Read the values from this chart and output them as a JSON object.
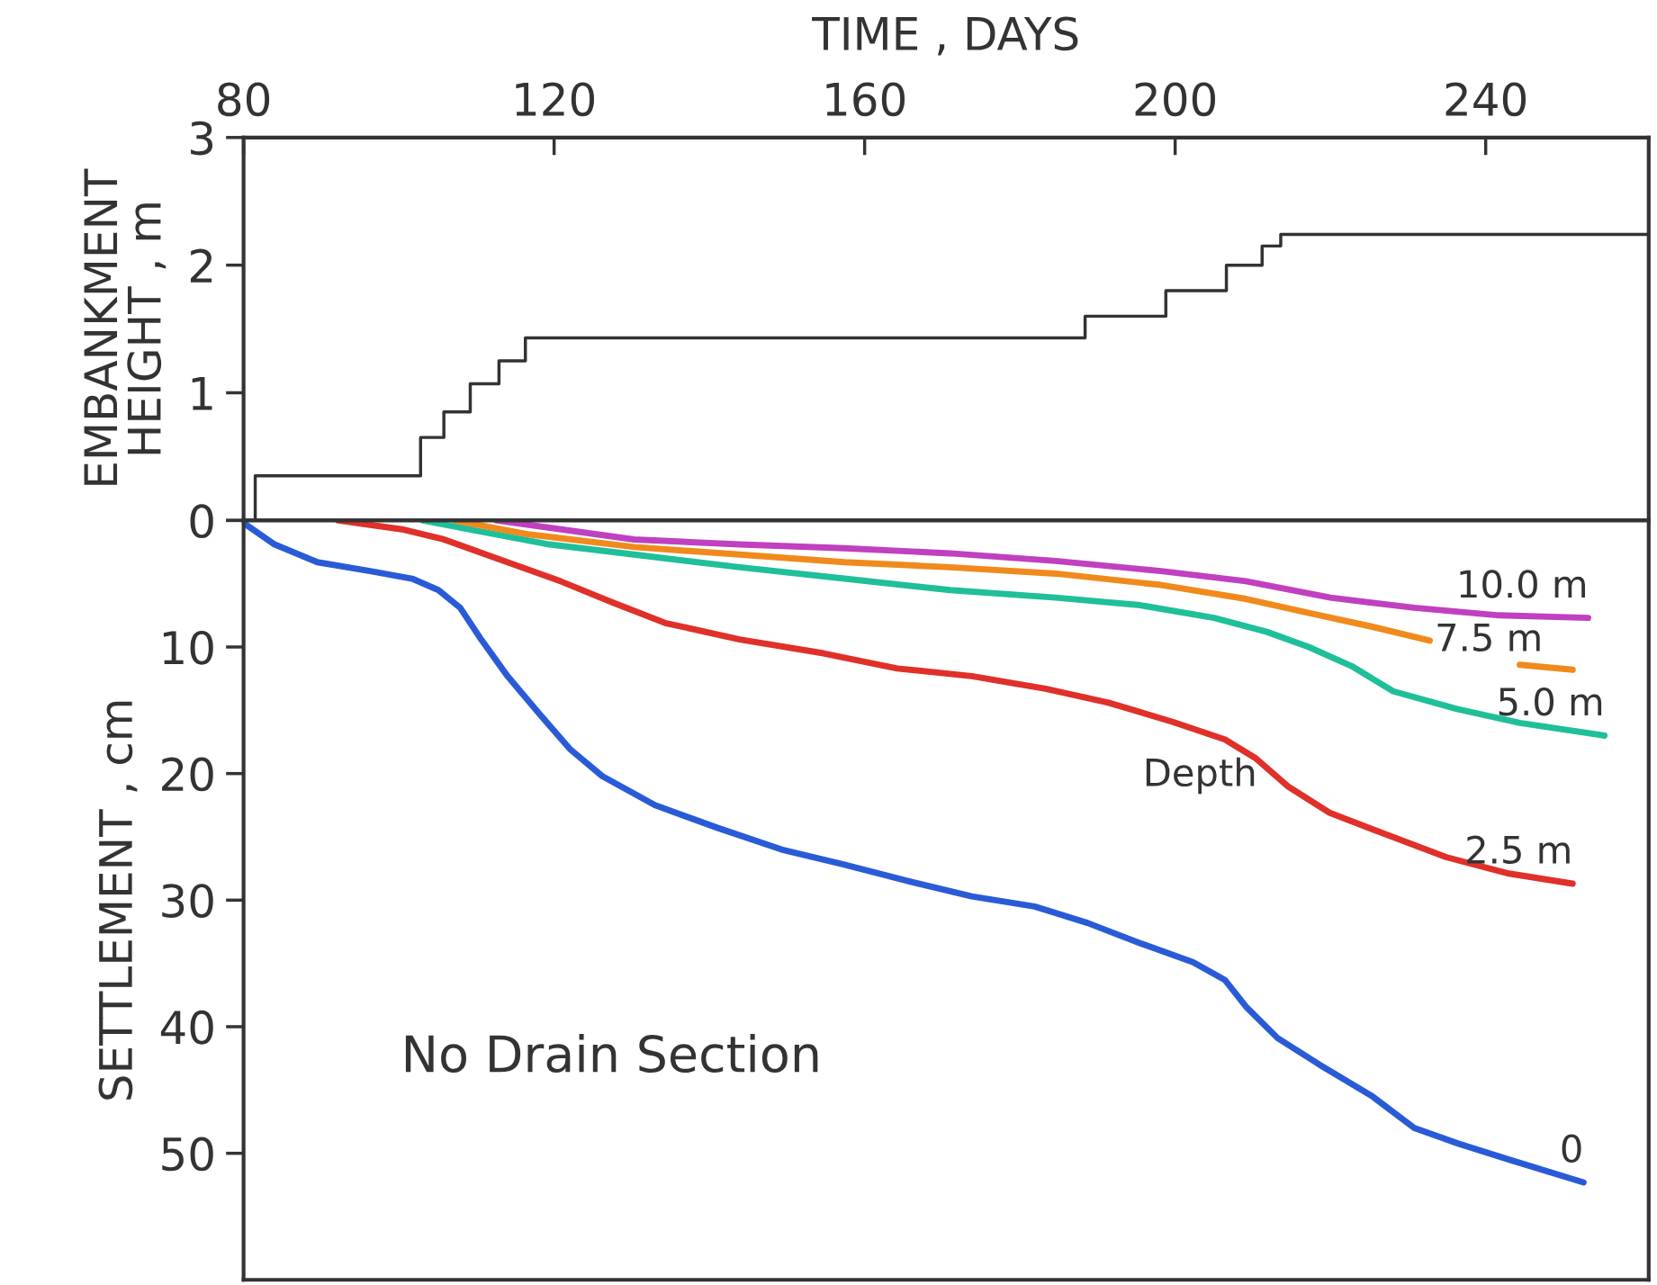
{
  "chart_data": [
    {
      "type": "step",
      "title": "TIME , DAYS",
      "ylabel": "EMBANKMENT\nHEIGHT , m",
      "xlim": [
        80,
        261
      ],
      "xticks": [
        80,
        120,
        160,
        200,
        240
      ],
      "ylim": [
        0,
        3
      ],
      "yticks": [
        0,
        1,
        2,
        3
      ],
      "grid": false,
      "legend": false,
      "x": [
        81.5,
        81.5,
        102.8,
        105.8,
        109.2,
        112.9,
        116.3,
        188.4,
        198.8,
        206.6,
        211.2,
        213.6,
        261
      ],
      "series": [
        {
          "color": "#333333",
          "values": [
            0,
            0.35,
            0.65,
            0.85,
            1.07,
            1.25,
            1.43,
            1.6,
            1.8,
            2.0,
            2.15,
            2.24,
            2.24
          ]
        }
      ]
    },
    {
      "type": "line",
      "ylabel": "SETTLEMENT , cm",
      "xlim": [
        80,
        261
      ],
      "ylim": [
        60,
        0
      ],
      "yticks": [
        {
          "value": 0,
          "label": null
        },
        10,
        20,
        30,
        40,
        50
      ],
      "tick_labels": "y",
      "grid": false,
      "legend": false,
      "annotations": [
        "Depth",
        "No Drain Section"
      ],
      "series": [
        {
          "name": "0",
          "color": "#2a5bd7",
          "x": [
            80,
            84,
            89.5,
            96.3,
            101.7,
            105.1,
            107.9,
            110.6,
            114,
            118,
            122.1,
            126.2,
            133,
            141.1,
            149.3,
            157.4,
            165.6,
            173.8,
            181.9,
            188.7,
            195.5,
            202.3,
            206.4,
            209.1,
            213.2,
            218.6,
            225.4,
            230.8,
            236.3,
            243,
            252.6
          ],
          "values": [
            0.2,
            1.9,
            3.3,
            4.0,
            4.6,
            5.5,
            6.9,
            9.4,
            12.3,
            15.2,
            18.1,
            20.2,
            22.5,
            24.3,
            26.0,
            27.2,
            28.5,
            29.7,
            30.5,
            31.8,
            33.4,
            34.9,
            36.3,
            38.4,
            40.9,
            43.0,
            45.5,
            48.0,
            49.2,
            50.5,
            52.3
          ]
        },
        {
          "name": "2.5 m",
          "color": "#e0302a",
          "x": [
            92.2,
            100.4,
            105.8,
            112.6,
            120.8,
            127.6,
            134.3,
            143.9,
            154.7,
            164.2,
            173.8,
            183.3,
            191.4,
            199.6,
            206.4,
            210.4,
            214.5,
            219.9,
            226.7,
            234.9,
            243,
            251.2
          ],
          "values": [
            0,
            0.7,
            1.5,
            3.0,
            4.8,
            6.5,
            8.1,
            9.4,
            10.5,
            11.7,
            12.3,
            13.3,
            14.4,
            15.9,
            17.3,
            18.8,
            21.0,
            23.1,
            24.7,
            26.6,
            27.9,
            28.7
          ]
        },
        {
          "name": "5.0 m",
          "color": "#1fbf9a",
          "x": [
            103.1,
            109.9,
            119.4,
            130.3,
            143.9,
            157.4,
            171,
            184.6,
            195.5,
            205,
            211.8,
            217.2,
            222.7,
            228.1,
            236.3,
            244.4,
            255.3
          ],
          "values": [
            0,
            0.8,
            1.9,
            2.7,
            3.7,
            4.6,
            5.5,
            6.1,
            6.7,
            7.7,
            8.8,
            10.0,
            11.5,
            13.5,
            14.9,
            16.0,
            17.0
          ]
        },
        {
          "name": "7.5 m",
          "color": "#f08a1c",
          "x": [
            107.2,
            116.7,
            130.3,
            143.9,
            157.4,
            171,
            184.6,
            198.2,
            209.1,
            217.2,
            225.4,
            232.8,
            238,
            244.4,
            251.2
          ],
          "values": [
            0,
            1.1,
            2.1,
            2.7,
            3.3,
            3.7,
            4.2,
            5.1,
            6.2,
            7.3,
            8.4,
            9.5,
            null,
            11.4,
            11.8
          ]
        },
        {
          "name": "10.0 m",
          "color": "#c040c0",
          "x": [
            112.6,
            130.3,
            143.9,
            157.4,
            171,
            184.6,
            198.2,
            209.1,
            220,
            230.8,
            241.7,
            253.2
          ],
          "values": [
            0,
            1.5,
            1.9,
            2.2,
            2.6,
            3.2,
            4.0,
            4.8,
            6.1,
            6.9,
            7.5,
            7.7
          ]
        }
      ]
    }
  ]
}
